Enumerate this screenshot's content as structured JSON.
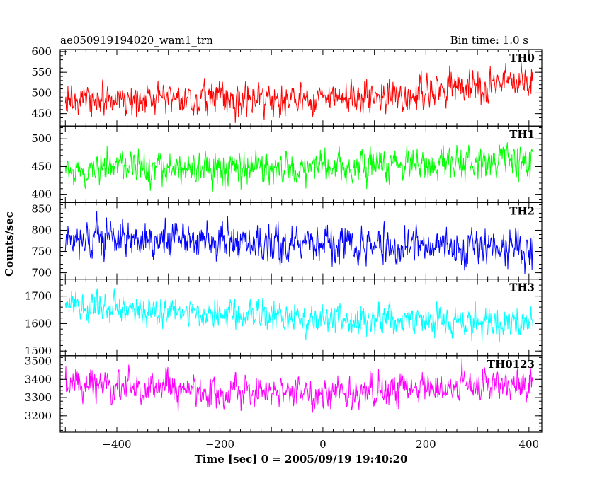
{
  "header": {
    "title": "ae050919194020_wam1_trn",
    "bin_time": "Bin time: 1.0 s"
  },
  "chart_data": {
    "type": "line",
    "title": "ae050919194020_wam1_trn",
    "xlabel": "Time [sec] 0 = 2005/09/19 19:40:20",
    "ylabel": "Counts/sec",
    "xlim": [
      -510,
      425
    ],
    "x_step": 1.0,
    "x_start": -500,
    "x_end": 408,
    "xticks": [
      -400,
      -200,
      0,
      200,
      400
    ],
    "series": [
      {
        "name": "TH0",
        "color": "#ff0000",
        "ylim": [
          420,
          605
        ],
        "yticks": [
          450,
          500,
          550,
          600
        ],
        "trend": [
          [
            -500,
            478
          ],
          [
            -300,
            490
          ],
          [
            -100,
            480
          ],
          [
            0,
            487
          ],
          [
            150,
            492
          ],
          [
            250,
            512
          ],
          [
            408,
            528
          ]
        ],
        "noise": 30
      },
      {
        "name": "TH1",
        "color": "#00ff00",
        "ylim": [
          385,
          523
        ],
        "yticks": [
          400,
          450,
          500
        ],
        "trend": [
          [
            -500,
            445
          ],
          [
            -200,
            445
          ],
          [
            100,
            448
          ],
          [
            300,
            455
          ],
          [
            408,
            462
          ]
        ],
        "noise": 23
      },
      {
        "name": "TH2",
        "color": "#0000ff",
        "ylim": [
          685,
          865
        ],
        "yticks": [
          700,
          750,
          800,
          850
        ],
        "trend": [
          [
            -500,
            785
          ],
          [
            -300,
            778
          ],
          [
            0,
            768
          ],
          [
            200,
            760
          ],
          [
            408,
            752
          ]
        ],
        "noise": 32
      },
      {
        "name": "TH3",
        "color": "#00ffff",
        "ylim": [
          1483,
          1762
        ],
        "yticks": [
          1500,
          1600,
          1700
        ],
        "trend": [
          [
            -500,
            1665
          ],
          [
            -200,
            1632
          ],
          [
            100,
            1610
          ],
          [
            408,
            1600
          ]
        ],
        "noise": 42
      },
      {
        "name": "TH0123",
        "color": "#ff00ff",
        "ylim": [
          3110,
          3530
        ],
        "yticks": [
          3200,
          3300,
          3400,
          3500
        ],
        "trend": [
          [
            -500,
            3370
          ],
          [
            -200,
            3335
          ],
          [
            0,
            3325
          ],
          [
            200,
            3345
          ],
          [
            408,
            3385
          ]
        ],
        "noise": 65
      }
    ]
  }
}
